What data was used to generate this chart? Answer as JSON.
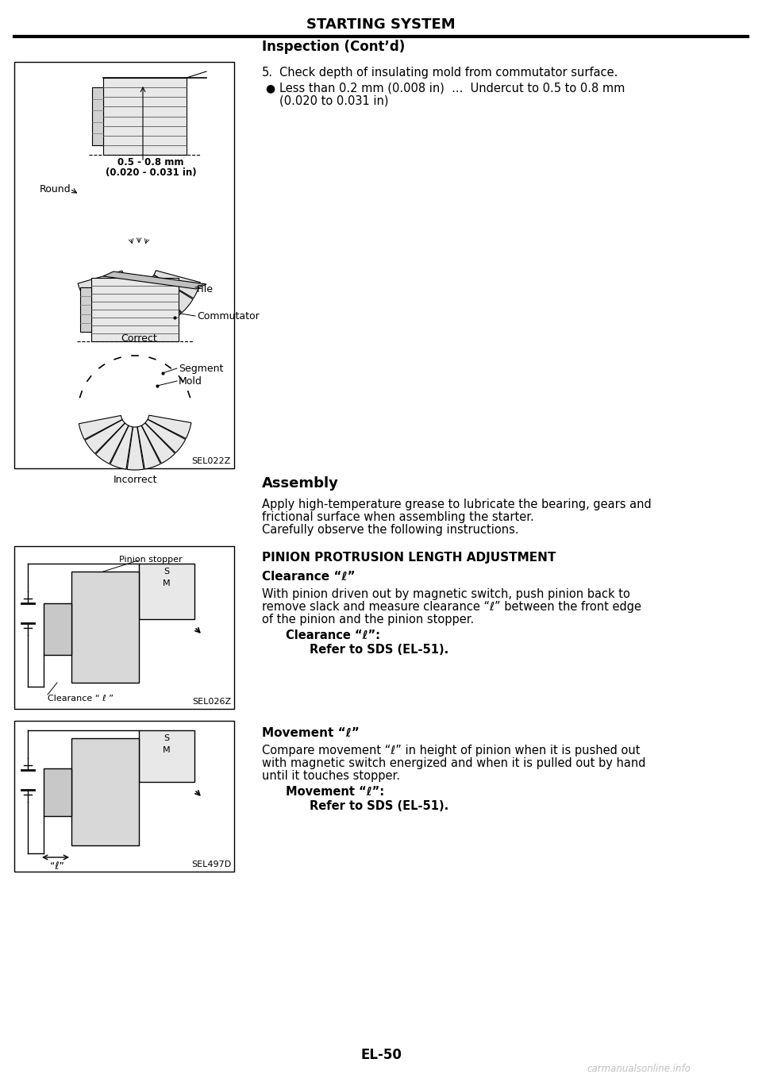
{
  "page_title": "STARTING SYSTEM",
  "section1_title": "Inspection (Cont’d)",
  "item5_text": "Check depth of insulating mold from commutator surface.",
  "bullet_text1": "Less than 0.2 mm (0.008 in)  ...  Undercut to 0.5 to 0.8 mm",
  "bullet_text2": "(0.020 to 0.031 in)",
  "section2_title": "Assembly",
  "section2_text1": "Apply high-temperature grease to lubricate the bearing, gears and",
  "section2_text2": "frictional surface when assembling the starter.",
  "section2_text3": "Carefully observe the following instructions.",
  "section3_title": "PINION PROTRUSION LENGTH ADJUSTMENT",
  "section3_sub1": "Clearance “ℓ”",
  "section3_text1a": "With pinion driven out by magnetic switch, push pinion back to",
  "section3_text1b": "remove slack and measure clearance “ℓ” between the front edge",
  "section3_text1c": "of the pinion and the pinion stopper.",
  "section3_bold1a": "Clearance “ℓ”:",
  "section3_ref1": "Refer to SDS (EL-51).",
  "section3_sub2": "Movement “ℓ”",
  "section3_text2a": "Compare movement “ℓ” in height of pinion when it is pushed out",
  "section3_text2b": "with magnetic switch energized and when it is pulled out by hand",
  "section3_text2c": "until it touches stopper.",
  "section3_bold2a": "Movement “ℓ”:",
  "section3_ref2": "Refer to SDS (EL-51).",
  "page_number": "EL-50",
  "watermark": "carmanualsonline.info",
  "fig1_label": "SEL022Z",
  "fig2_label": "SEL026Z",
  "fig3_label": "SEL497D",
  "ann_line1": "0.5 - 0.8 mm",
  "ann_line2": "(0.020 - 0.031 in)",
  "label_round": "Round",
  "label_correct": "Correct",
  "label_file": "File",
  "label_commutator": "Commutator",
  "label_segment": "Segment",
  "label_mold": "Mold",
  "label_incorrect": "Incorrect",
  "label_pinion_stopper": "Pinion stopper",
  "label_clearance": "Clearance “ ℓ ”",
  "label_ell": "“ℓ”"
}
